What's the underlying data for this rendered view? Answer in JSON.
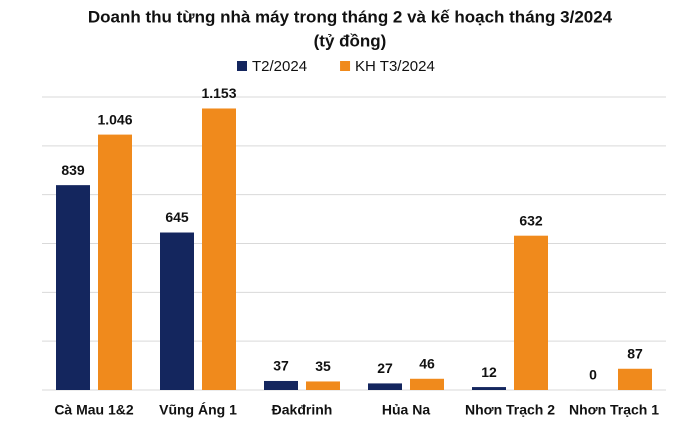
{
  "chart_data": {
    "type": "bar",
    "title": "Doanh thu từng nhà máy trong tháng 2 và kế hoạch tháng 3/2024",
    "subtitle": "(tỷ đồng)",
    "categories": [
      "Cà Mau 1&2",
      "Vũng Áng 1",
      "Đakđrinh",
      "Hủa Na",
      "Nhơn Trạch 2",
      "Nhơn Trạch 1"
    ],
    "series": [
      {
        "name": "T2/2024",
        "color": "#14265e",
        "values": [
          839,
          645,
          37,
          27,
          12,
          0
        ],
        "value_labels": [
          "839",
          "645",
          "37",
          "27",
          "12",
          "0"
        ]
      },
      {
        "name": "KH T3/2024",
        "color": "#f08a1c",
        "values": [
          1046,
          1153,
          35,
          46,
          632,
          87
        ],
        "value_labels": [
          "1.046",
          "1.153",
          "35",
          "46",
          "632",
          "87"
        ]
      }
    ],
    "ylim": [
      0,
      1200
    ],
    "yticks": [
      0,
      200,
      400,
      600,
      800,
      1000,
      1200
    ],
    "grid": true
  }
}
